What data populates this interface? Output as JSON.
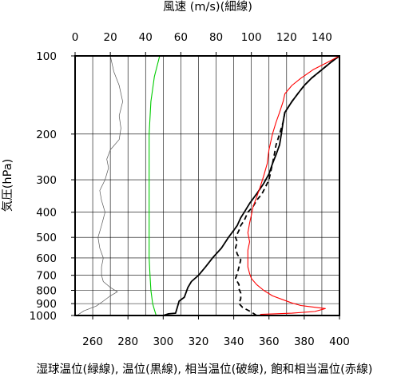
{
  "chart_data": {
    "type": "line",
    "title": "風速 (m/s)(細線)",
    "xlabel": "湿球温位(緑線), 温位(黒線), 相当温位(破線), 飽和相当温位(赤線)",
    "ylabel": "気圧(hPa)",
    "x_range_temperature": [
      250,
      400
    ],
    "x_range_wind": [
      0,
      150
    ],
    "y_range_pressure": [
      1000,
      100
    ],
    "y_scale": "log",
    "grid": true,
    "x_ticks_bottom": [
      "260",
      "280",
      "300",
      "320",
      "340",
      "360",
      "380",
      "400"
    ],
    "x_ticks_top": [
      "0",
      "20",
      "40",
      "60",
      "80",
      "100",
      "120",
      "140"
    ],
    "y_ticks": [
      "100",
      "200",
      "300",
      "400",
      "500",
      "600",
      "700",
      "800",
      "900",
      "1000"
    ],
    "series": [
      {
        "key": "wind",
        "axis": "top",
        "color": "#555555",
        "style": "thin",
        "points": [
          [
            1,
            1000
          ],
          [
            5,
            960
          ],
          [
            12,
            920
          ],
          [
            16,
            880
          ],
          [
            20,
            840
          ],
          [
            24,
            810
          ],
          [
            20,
            780
          ],
          [
            16,
            740
          ],
          [
            15,
            700
          ],
          [
            15,
            650
          ],
          [
            16,
            600
          ],
          [
            14,
            550
          ],
          [
            13,
            500
          ],
          [
            15,
            450
          ],
          [
            17,
            400
          ],
          [
            15,
            360
          ],
          [
            14,
            330
          ],
          [
            17,
            300
          ],
          [
            19,
            270
          ],
          [
            18,
            250
          ],
          [
            20,
            230
          ],
          [
            25,
            210
          ],
          [
            26,
            190
          ],
          [
            25,
            170
          ],
          [
            27,
            150
          ],
          [
            25,
            130
          ],
          [
            22,
            115
          ],
          [
            20,
            100
          ]
        ]
      },
      {
        "key": "wet_bulb_theta",
        "axis": "bottom",
        "color": "#00cc00",
        "style": "solid",
        "points": [
          [
            296,
            1000
          ],
          [
            295,
            950
          ],
          [
            294,
            900
          ],
          [
            293,
            800
          ],
          [
            292.5,
            700
          ],
          [
            292,
            600
          ],
          [
            292,
            500
          ],
          [
            292,
            400
          ],
          [
            292,
            300
          ],
          [
            292,
            200
          ],
          [
            293,
            150
          ],
          [
            295,
            120
          ],
          [
            298,
            100
          ]
        ]
      },
      {
        "key": "theta",
        "axis": "bottom",
        "color": "#000000",
        "style": "solid",
        "points": [
          [
            300,
            1000
          ],
          [
            303,
            985
          ],
          [
            307,
            980
          ],
          [
            308,
            930
          ],
          [
            309,
            880
          ],
          [
            312,
            850
          ],
          [
            314,
            780
          ],
          [
            316,
            740
          ],
          [
            320,
            700
          ],
          [
            324,
            650
          ],
          [
            328,
            600
          ],
          [
            333,
            550
          ],
          [
            337,
            500
          ],
          [
            340,
            470
          ],
          [
            342,
            450
          ],
          [
            344,
            420
          ],
          [
            346,
            400
          ],
          [
            349,
            370
          ],
          [
            353,
            340
          ],
          [
            357,
            310
          ],
          [
            360,
            285
          ],
          [
            362,
            260
          ],
          [
            364,
            240
          ],
          [
            366,
            220
          ],
          [
            367,
            200
          ],
          [
            368,
            180
          ],
          [
            369,
            165
          ],
          [
            373,
            150
          ],
          [
            377,
            138
          ],
          [
            380,
            130
          ],
          [
            384,
            122
          ],
          [
            390,
            113
          ],
          [
            395,
            106
          ],
          [
            400,
            100
          ]
        ]
      },
      {
        "key": "equivalent_theta",
        "axis": "bottom",
        "color": "#000000",
        "style": "dashed",
        "points": [
          [
            353,
            1000
          ],
          [
            350,
            970
          ],
          [
            345,
            930
          ],
          [
            343,
            900
          ],
          [
            344,
            860
          ],
          [
            344,
            820
          ],
          [
            343,
            790
          ],
          [
            343,
            760
          ],
          [
            341,
            720
          ],
          [
            342,
            690
          ],
          [
            343,
            650
          ],
          [
            344,
            610
          ],
          [
            342,
            580
          ],
          [
            341,
            550
          ],
          [
            342,
            520
          ],
          [
            341,
            500
          ],
          [
            343,
            470
          ],
          [
            344,
            450
          ],
          [
            346,
            430
          ],
          [
            348,
            400
          ],
          [
            351,
            380
          ],
          [
            353,
            360
          ],
          [
            356,
            340
          ],
          [
            358,
            320
          ],
          [
            360,
            300
          ],
          [
            361,
            280
          ],
          [
            362,
            260
          ],
          [
            363,
            240
          ],
          [
            364,
            220
          ],
          [
            366,
            200
          ],
          [
            368,
            180
          ],
          [
            369,
            165
          ],
          [
            373,
            150
          ],
          [
            377,
            138
          ],
          [
            380,
            130
          ],
          [
            384,
            122
          ],
          [
            390,
            113
          ],
          [
            395,
            106
          ],
          [
            400,
            100
          ]
        ]
      },
      {
        "key": "saturated_equivalent_theta",
        "axis": "bottom",
        "color": "#ff0000",
        "style": "solid",
        "points": [
          [
            355,
            990
          ],
          [
            363,
            985
          ],
          [
            373,
            980
          ],
          [
            386,
            965
          ],
          [
            392,
            940
          ],
          [
            378,
            915
          ],
          [
            373,
            895
          ],
          [
            368,
            870
          ],
          [
            362,
            840
          ],
          [
            357,
            800
          ],
          [
            353,
            760
          ],
          [
            350,
            720
          ],
          [
            349,
            690
          ],
          [
            348,
            650
          ],
          [
            348,
            600
          ],
          [
            348,
            560
          ],
          [
            349,
            520
          ],
          [
            348,
            480
          ],
          [
            349,
            440
          ],
          [
            350,
            410
          ],
          [
            351,
            380
          ],
          [
            353,
            350
          ],
          [
            355,
            320
          ],
          [
            357,
            290
          ],
          [
            359,
            260
          ],
          [
            360,
            230
          ],
          [
            362,
            200
          ],
          [
            364,
            180
          ],
          [
            366,
            165
          ],
          [
            368,
            150
          ],
          [
            369,
            140
          ],
          [
            373,
            130
          ],
          [
            378,
            122
          ],
          [
            385,
            113
          ],
          [
            393,
            106
          ],
          [
            400,
            100
          ]
        ]
      }
    ]
  }
}
